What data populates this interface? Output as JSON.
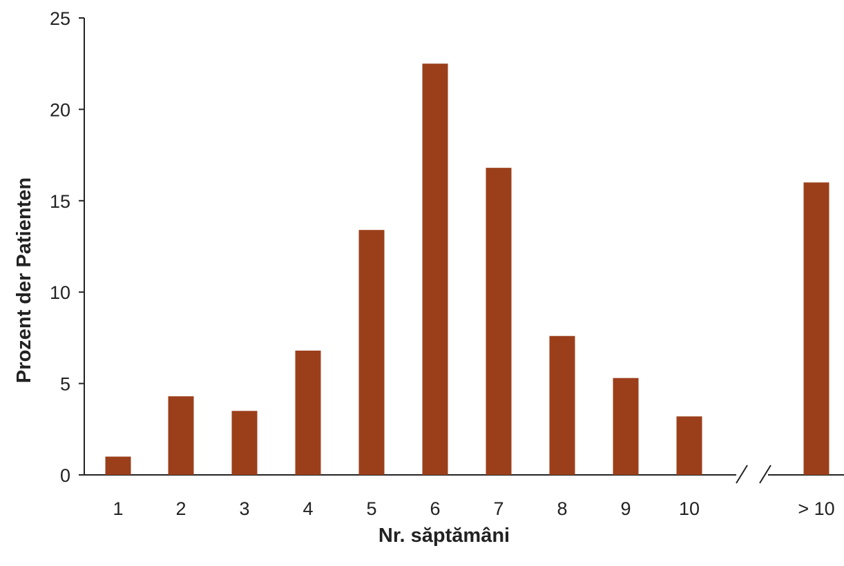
{
  "chart_data": {
    "type": "bar",
    "categories": [
      "1",
      "2",
      "3",
      "4",
      "5",
      "6",
      "7",
      "8",
      "9",
      "10",
      "> 10"
    ],
    "values": [
      1.0,
      4.3,
      3.5,
      6.8,
      13.4,
      22.5,
      16.8,
      7.6,
      5.3,
      3.2,
      16.0
    ],
    "xlabel": "Nr. săptămâni",
    "ylabel": "Prozent der Patienten",
    "ylim": [
      0,
      25
    ],
    "yticks": [
      "0",
      "5",
      "10",
      "15",
      "20",
      "25"
    ],
    "axis_break": "between 10 and > 10",
    "grid": false,
    "colors": {
      "bar": "#9b3f1b",
      "axis": "#222222"
    }
  }
}
